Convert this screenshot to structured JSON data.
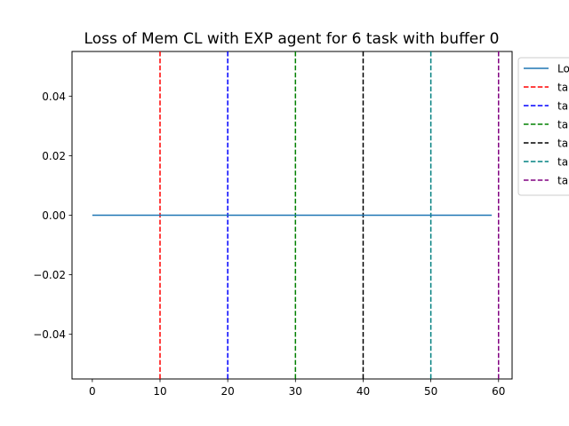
{
  "chart_data": {
    "type": "line",
    "title": "Loss of Mem CL with EXP agent for 6 task with buffer 0",
    "xlabel": "",
    "ylabel": "",
    "xlim": [
      -3,
      62
    ],
    "ylim": [
      -0.055,
      0.055
    ],
    "x_ticks": [
      0,
      10,
      20,
      30,
      40,
      50,
      60
    ],
    "y_ticks": [
      -0.04,
      -0.02,
      0.0,
      0.02,
      0.04
    ],
    "x_tick_labels": [
      "0",
      "10",
      "20",
      "30",
      "40",
      "50",
      "60"
    ],
    "y_tick_labels": [
      "−0.04",
      "−0.02",
      "0.00",
      "0.02",
      "0.04"
    ],
    "series": [
      {
        "name": "Lo",
        "color": "#1f77b4",
        "x": [
          0,
          59
        ],
        "y": [
          0.0,
          0.0
        ]
      }
    ],
    "vlines": [
      {
        "name": "ta",
        "x": 10,
        "color": "#ff0000"
      },
      {
        "name": "ta",
        "x": 20,
        "color": "#0000ff"
      },
      {
        "name": "ta",
        "x": 30,
        "color": "#008000"
      },
      {
        "name": "ta",
        "x": 40,
        "color": "#000000"
      },
      {
        "name": "ta",
        "x": 50,
        "color": "#008080"
      },
      {
        "name": "ta",
        "x": 60,
        "color": "#800080"
      }
    ],
    "grid": false,
    "legend_position": "outside right, top"
  }
}
